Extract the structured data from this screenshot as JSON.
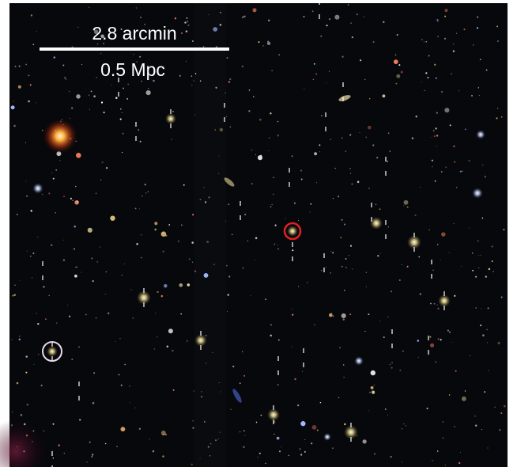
{
  "scale_bar": {
    "top_label": "2.8 arcmin",
    "bottom_label": "0.5 Mpc"
  }
}
